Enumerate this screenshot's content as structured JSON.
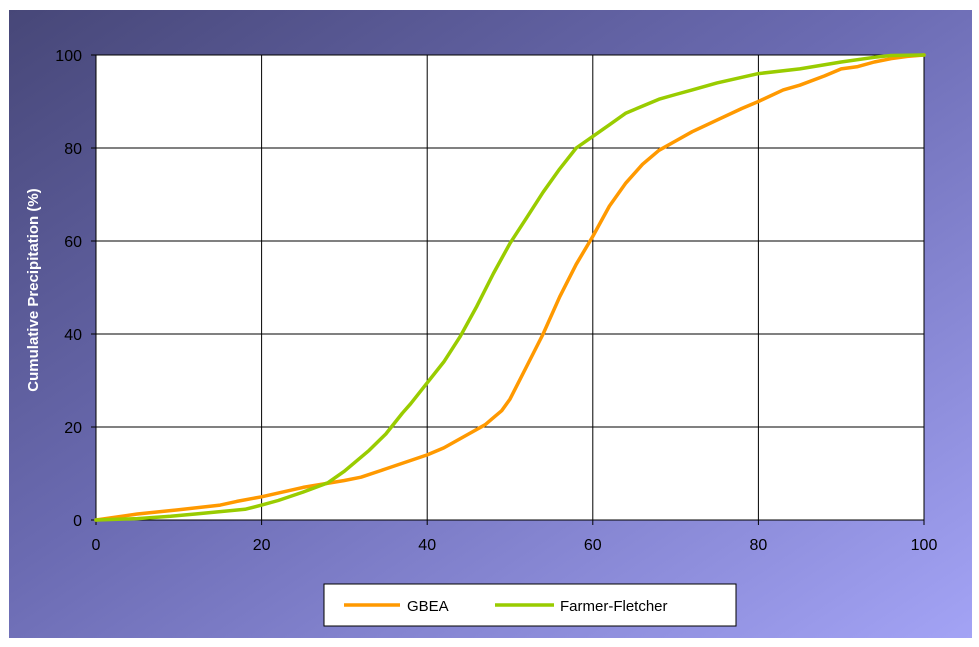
{
  "chart_data": {
    "type": "line",
    "title": "",
    "xlabel": "",
    "ylabel": "Cumulative Precipitation (%)",
    "xlim": [
      0,
      100
    ],
    "ylim": [
      0,
      100
    ],
    "x_ticks": [
      0,
      20,
      40,
      60,
      80,
      100
    ],
    "y_ticks": [
      0,
      20,
      40,
      60,
      80,
      100
    ],
    "grid": true,
    "legend_position": "bottom",
    "series": [
      {
        "name": "GBEA",
        "color": "#ff9900",
        "x": [
          0,
          5,
          10,
          15,
          17,
          20,
          25,
          30,
          32,
          35,
          40,
          42,
          45,
          47,
          48,
          49,
          50,
          52,
          54,
          56,
          58,
          60,
          62,
          64,
          66,
          68,
          70,
          72,
          75,
          78,
          80,
          83,
          85,
          88,
          90,
          92,
          94,
          96,
          98,
          100
        ],
        "y": [
          0,
          1.3,
          2.2,
          3.2,
          4,
          5,
          7,
          8.5,
          9.2,
          11,
          14,
          15.5,
          18.5,
          20.5,
          22,
          23.5,
          26,
          33,
          40,
          48,
          55,
          61,
          67.5,
          72.5,
          76.5,
          79.5,
          81.5,
          83.5,
          86,
          88.5,
          90,
          92.5,
          93.5,
          95.5,
          97,
          97.5,
          98.5,
          99.2,
          99.7,
          100
        ]
      },
      {
        "name": "Farmer-Fletcher",
        "color": "#99cc00",
        "x": [
          0,
          5,
          9,
          12,
          15,
          18,
          20,
          22,
          25,
          28,
          30,
          33,
          35,
          37,
          38,
          40,
          42,
          44,
          46,
          48,
          50,
          52,
          54,
          56,
          58,
          60,
          62,
          64,
          66,
          68,
          70,
          72,
          75,
          77,
          80,
          85,
          90,
          94,
          96,
          100
        ],
        "y": [
          0,
          0.3,
          0.8,
          1.3,
          1.8,
          2.3,
          3.2,
          4.2,
          6,
          8,
          10.5,
          15,
          18.5,
          23,
          25,
          29.5,
          34,
          39.5,
          46,
          53,
          59.5,
          65,
          70.5,
          75.5,
          80,
          82.5,
          85,
          87.5,
          89,
          90.5,
          91.5,
          92.5,
          94,
          94.8,
          96,
          97,
          98.5,
          99.5,
          99.9,
          100
        ]
      }
    ]
  }
}
